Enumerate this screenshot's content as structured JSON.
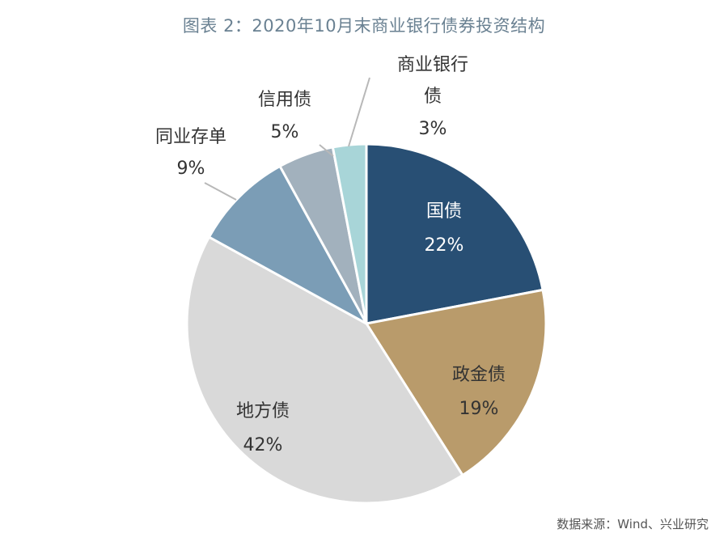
{
  "title": "图表 2：2020年10月末商业银行债券投资结构",
  "source": "数据来源：Wind、兴业研究",
  "chart_data": {
    "type": "pie",
    "title": "图表 2：2020年10月末商业银行债券投资结构",
    "slices": [
      {
        "label": "国债",
        "value": 22,
        "display": "22%",
        "color": "#284f74",
        "text_color": "#ffffff"
      },
      {
        "label": "政金债",
        "value": 19,
        "display": "19%",
        "color": "#b99b6b",
        "text_color": "#333333"
      },
      {
        "label": "地方债",
        "value": 42,
        "display": "42%",
        "color": "#d9d9d9",
        "text_color": "#333333"
      },
      {
        "label": "同业存单",
        "value": 9,
        "display": "9%",
        "color": "#7b9db6",
        "text_color": "#333333"
      },
      {
        "label": "信用债",
        "value": 5,
        "display": "5%",
        "color": "#a2b1bd",
        "text_color": "#333333"
      },
      {
        "label": "商业银行债",
        "value": 3,
        "display": "3%",
        "color": "#a8d5d8",
        "text_color": "#333333"
      }
    ]
  }
}
